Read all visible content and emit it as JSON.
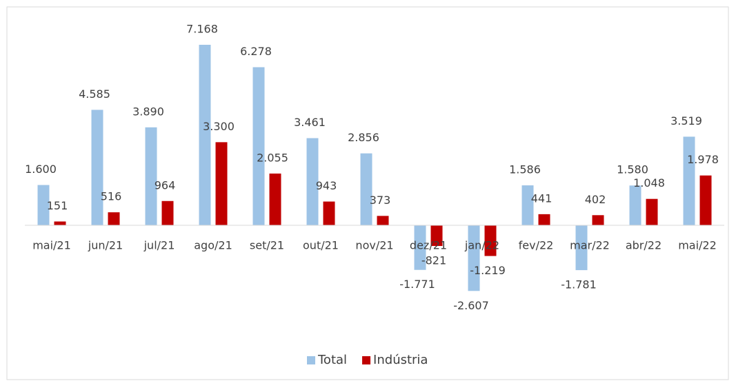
{
  "chart_data": {
    "type": "bar",
    "categories": [
      "mai/21",
      "jun/21",
      "jul/21",
      "ago/21",
      "set/21",
      "out/21",
      "nov/21",
      "dez/21",
      "jan/22",
      "fev/22",
      "mar/22",
      "abr/22",
      "mai/22"
    ],
    "series": [
      {
        "name": "Total",
        "color": "#9dc3e6",
        "values": [
          1600,
          4585,
          3890,
          7168,
          6278,
          3461,
          2856,
          -1771,
          -2607,
          1586,
          -1781,
          1580,
          3519
        ],
        "value_labels": [
          "1.600",
          "4.585",
          "3.890",
          "7.168",
          "6.278",
          "3.461",
          "2.856",
          "-1.771",
          "-2.607",
          "1.586",
          "-1.781",
          "1.580",
          "3.519"
        ]
      },
      {
        "name": "Indústria",
        "color": "#c00000",
        "values": [
          151,
          516,
          964,
          3300,
          2055,
          943,
          373,
          -821,
          -1219,
          441,
          402,
          1048,
          1978
        ],
        "value_labels": [
          "151",
          "516",
          "964",
          "3.300",
          "2.055",
          "943",
          "373",
          "-821",
          "-1.219",
          "441",
          "402",
          "1.048",
          "1.978"
        ]
      }
    ],
    "legend": "bottom"
  }
}
